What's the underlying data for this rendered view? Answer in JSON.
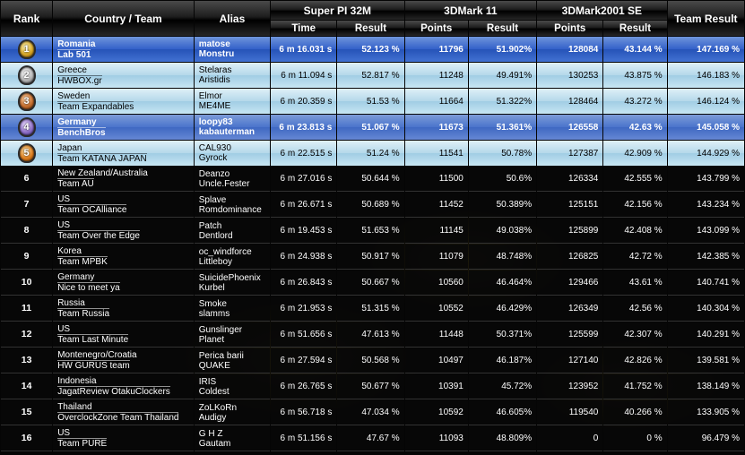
{
  "headers": {
    "rank": "Rank",
    "country_team": "Country / Team",
    "alias": "Alias",
    "superpi": "Super PI 32M",
    "mark11": "3DMark 11",
    "mark2001": "3DMark2001 SE",
    "team_result": "Team Result",
    "time": "Time",
    "result": "Result",
    "points": "Points"
  },
  "rows": [
    {
      "rank": "1",
      "badge": "gold",
      "style": "blue",
      "country": "Romania",
      "team": "Lab 501",
      "alias1": "matose",
      "alias2": "Monstru",
      "spi_time": "6 m 16.031 s",
      "spi_result": "52.123 %",
      "m11_points": "11796",
      "m11_result": "51.902%",
      "m01_points": "128084",
      "m01_result": "43.144 %",
      "team_result": "147.169 %"
    },
    {
      "rank": "2",
      "badge": "silver",
      "style": "light",
      "country": "Greece",
      "team": "HWBOX.gr",
      "alias1": "Stelaras",
      "alias2": "Aristidis",
      "spi_time": "6 m 11.094 s",
      "spi_result": "52.817 %",
      "m11_points": "11248",
      "m11_result": "49.491%",
      "m01_points": "130253",
      "m01_result": "43.875 %",
      "team_result": "146.183 %"
    },
    {
      "rank": "3",
      "badge": "bronze",
      "style": "light",
      "country": "Sweden",
      "team": "Team Expandables",
      "alias1": "Elmor",
      "alias2": "ME4ME",
      "spi_time": "6 m 20.359 s",
      "spi_result": "51.53 %",
      "m11_points": "11664",
      "m11_result": "51.322%",
      "m01_points": "128464",
      "m01_result": "43.272 %",
      "team_result": "146.124 %"
    },
    {
      "rank": "4",
      "badge": "purple",
      "style": "lblue",
      "country": "Germany",
      "team": "BenchBros",
      "alias1": "loopy83",
      "alias2": "kabauterman",
      "spi_time": "6 m 23.813 s",
      "spi_result": "51.067 %",
      "m11_points": "11673",
      "m11_result": "51.361%",
      "m01_points": "126558",
      "m01_result": "42.63 %",
      "team_result": "145.058 %"
    },
    {
      "rank": "5",
      "badge": "orange",
      "style": "light",
      "country": "Japan",
      "team": "Team KATANA JAPAN",
      "alias1": "CAL930",
      "alias2": "Gyrock",
      "spi_time": "6 m 22.515 s",
      "spi_result": "51.24 %",
      "m11_points": "11541",
      "m11_result": "50.78%",
      "m01_points": "127387",
      "m01_result": "42.909 %",
      "team_result": "144.929 %"
    },
    {
      "rank": "6",
      "badge": "",
      "style": "dark",
      "country": "New Zealand/Australia",
      "team": "Team AU",
      "alias1": "Deanzo",
      "alias2": "Uncle.Fester",
      "spi_time": "6 m 27.016 s",
      "spi_result": "50.644 %",
      "m11_points": "11500",
      "m11_result": "50.6%",
      "m01_points": "126334",
      "m01_result": "42.555 %",
      "team_result": "143.799 %"
    },
    {
      "rank": "7",
      "badge": "",
      "style": "dark",
      "country": "US",
      "team": "Team OCAlliance",
      "alias1": "Splave",
      "alias2": "Romdominance",
      "spi_time": "6 m 26.671 s",
      "spi_result": "50.689 %",
      "m11_points": "11452",
      "m11_result": "50.389%",
      "m01_points": "125151",
      "m01_result": "42.156 %",
      "team_result": "143.234 %"
    },
    {
      "rank": "8",
      "badge": "",
      "style": "dark",
      "country": "US",
      "team": "Team Over the Edge",
      "alias1": "Patch",
      "alias2": "Dentlord",
      "spi_time": "6 m 19.453 s",
      "spi_result": "51.653 %",
      "m11_points": "11145",
      "m11_result": "49.038%",
      "m01_points": "125899",
      "m01_result": "42.408 %",
      "team_result": "143.099 %"
    },
    {
      "rank": "9",
      "badge": "",
      "style": "dark",
      "country": "Korea",
      "team": "Team MPBK",
      "alias1": "oc_windforce",
      "alias2": "Littleboy",
      "spi_time": "6 m 24.938 s",
      "spi_result": "50.917 %",
      "m11_points": "11079",
      "m11_result": "48.748%",
      "m01_points": "126825",
      "m01_result": "42.72 %",
      "team_result": "142.385 %"
    },
    {
      "rank": "10",
      "badge": "",
      "style": "dark",
      "country": "Germany",
      "team": "Nice to meet ya",
      "alias1": "SuicidePhoenix",
      "alias2": "Kurbel",
      "spi_time": "6 m 26.843 s",
      "spi_result": "50.667 %",
      "m11_points": "10560",
      "m11_result": "46.464%",
      "m01_points": "129466",
      "m01_result": "43.61 %",
      "team_result": "140.741 %"
    },
    {
      "rank": "11",
      "badge": "",
      "style": "dark",
      "country": "Russia",
      "team": "Team Russia",
      "alias1": "Smoke",
      "alias2": "slamms",
      "spi_time": "6 m 21.953 s",
      "spi_result": "51.315 %",
      "m11_points": "10552",
      "m11_result": "46.429%",
      "m01_points": "126349",
      "m01_result": "42.56 %",
      "team_result": "140.304 %"
    },
    {
      "rank": "12",
      "badge": "",
      "style": "dark",
      "country": "US",
      "team": "Team Last Minute",
      "alias1": "Gunslinger",
      "alias2": "Planet",
      "spi_time": "6 m 51.656 s",
      "spi_result": "47.613 %",
      "m11_points": "11448",
      "m11_result": "50.371%",
      "m01_points": "125599",
      "m01_result": "42.307 %",
      "team_result": "140.291 %"
    },
    {
      "rank": "13",
      "badge": "",
      "style": "dark",
      "country": "Montenegro/Croatia",
      "team": "HW GURUS team",
      "alias1": "Perica barii",
      "alias2": "QUAKE",
      "spi_time": "6 m 27.594 s",
      "spi_result": "50.568 %",
      "m11_points": "10497",
      "m11_result": "46.187%",
      "m01_points": "127140",
      "m01_result": "42.826 %",
      "team_result": "139.581 %"
    },
    {
      "rank": "14",
      "badge": "",
      "style": "dark",
      "country": "Indonesia",
      "team": "JagatReview OtakuClockers",
      "alias1": "IRIS",
      "alias2": "Coldest",
      "spi_time": "6 m 26.765 s",
      "spi_result": "50.677 %",
      "m11_points": "10391",
      "m11_result": "45.72%",
      "m01_points": "123952",
      "m01_result": "41.752 %",
      "team_result": "138.149 %"
    },
    {
      "rank": "15",
      "badge": "",
      "style": "dark",
      "country": "Thailand",
      "team": "OverclockZone Team Thailand",
      "alias1": "ZoLKoRn",
      "alias2": "Audigy",
      "spi_time": "6 m 56.718 s",
      "spi_result": "47.034 %",
      "m11_points": "10592",
      "m11_result": "46.605%",
      "m01_points": "119540",
      "m01_result": "40.266 %",
      "team_result": "133.905 %"
    },
    {
      "rank": "16",
      "badge": "",
      "style": "dark",
      "country": "US",
      "team": "Team PURE",
      "alias1": "G H Z",
      "alias2": "Gautam",
      "spi_time": "6 m 51.156 s",
      "spi_result": "47.67 %",
      "m11_points": "11093",
      "m11_result": "48.809%",
      "m01_points": "0",
      "m01_result": "0 %",
      "team_result": "96.479 %"
    }
  ]
}
